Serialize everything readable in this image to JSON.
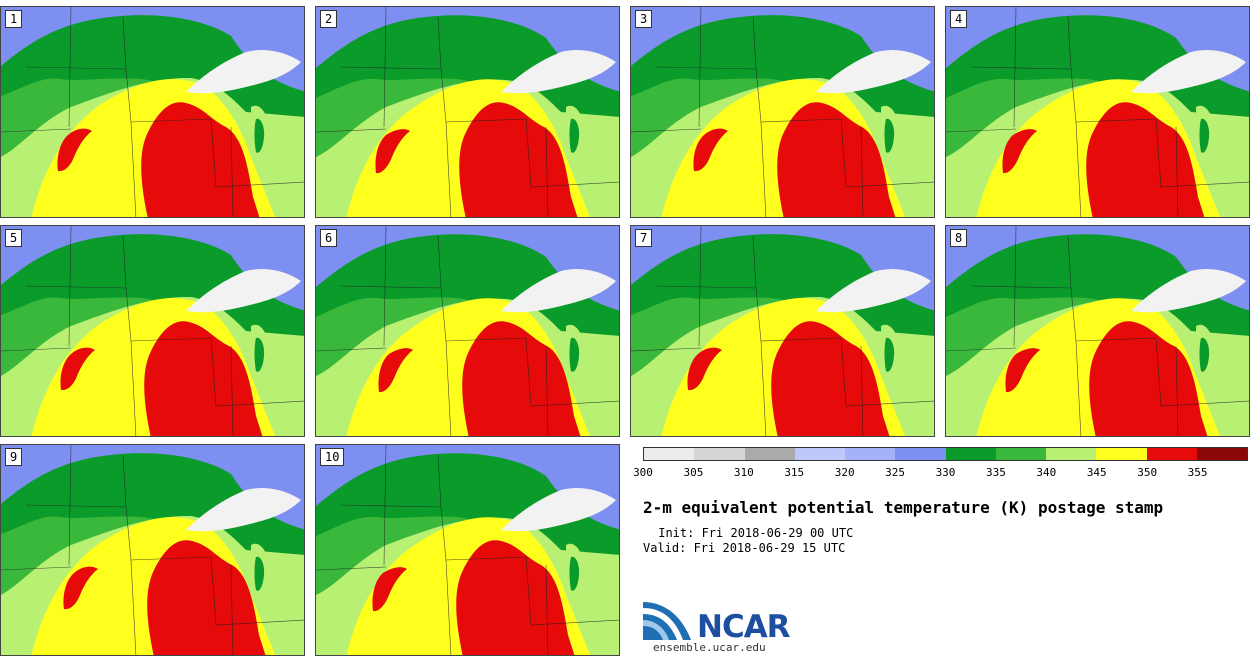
{
  "panels": [
    {
      "label": "1"
    },
    {
      "label": "2"
    },
    {
      "label": "3"
    },
    {
      "label": "4"
    },
    {
      "label": "5"
    },
    {
      "label": "6"
    },
    {
      "label": "7"
    },
    {
      "label": "8"
    },
    {
      "label": "9"
    },
    {
      "label": "10"
    }
  ],
  "colorbar": {
    "colors": [
      "#ececec",
      "#d6d6d6",
      "#aaaaaa",
      "#bec8fa",
      "#a3b2fa",
      "#7d8ff0",
      "#0a9b2a",
      "#3ab83c",
      "#b7f072",
      "#ffff1e",
      "#e60a0a",
      "#8c0808"
    ],
    "ticks": [
      "300",
      "305",
      "310",
      "315",
      "320",
      "325",
      "330",
      "335",
      "340",
      "345",
      "350",
      "355"
    ]
  },
  "title": "2-m equivalent potential temperature (K) postage stamp",
  "init_line": " Init: Fri 2018-06-29 00 UTC",
  "valid_line": "Valid: Fri 2018-06-29 15 UTC",
  "logo": {
    "text": "NCAR",
    "site": "ensemble.ucar.edu",
    "colors": [
      "#1d4fa0",
      "#ffffff"
    ]
  }
}
